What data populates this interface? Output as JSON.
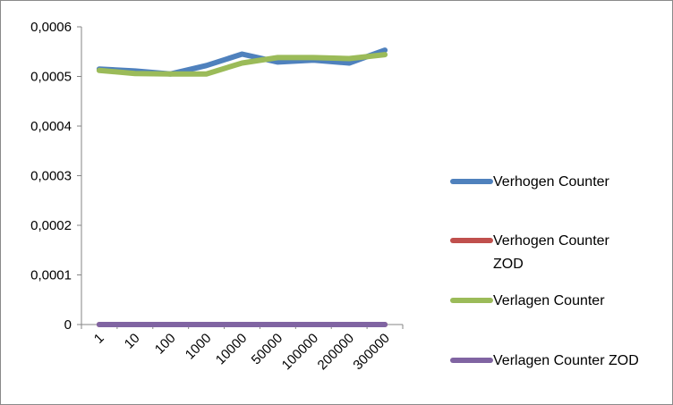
{
  "chart_data": {
    "type": "line",
    "categories": [
      "1",
      "10",
      "100",
      "1000",
      "10000",
      "50000",
      "100000",
      "200000",
      "300000"
    ],
    "ylim": [
      0,
      0.0006
    ],
    "yticks": [
      "0",
      "0,0001",
      "0,0002",
      "0,0003",
      "0,0004",
      "0,0005",
      "0,0006"
    ],
    "grid": false,
    "legend_position": "right",
    "series": [
      {
        "name": "Verhogen Counter",
        "color": "#4f81bd",
        "values": [
          0.000515,
          0.000511,
          0.000505,
          0.000522,
          0.000545,
          0.000529,
          0.000533,
          0.000527,
          0.000553
        ]
      },
      {
        "name_lines": [
          "Verhogen Counter",
          "ZOD"
        ],
        "color": "#c0504d",
        "values": [
          0,
          0,
          0,
          0,
          0,
          0,
          0,
          0,
          0
        ]
      },
      {
        "name": "Verlagen Counter",
        "color": "#9bbb59",
        "values": [
          0.000512,
          0.000506,
          0.000505,
          0.000505,
          0.000527,
          0.000538,
          0.000538,
          0.000536,
          0.000544
        ]
      },
      {
        "name": "Verlagen Counter ZOD",
        "color": "#8064a2",
        "values": [
          0,
          0,
          0,
          0,
          0,
          0,
          0,
          0,
          0
        ]
      }
    ]
  }
}
